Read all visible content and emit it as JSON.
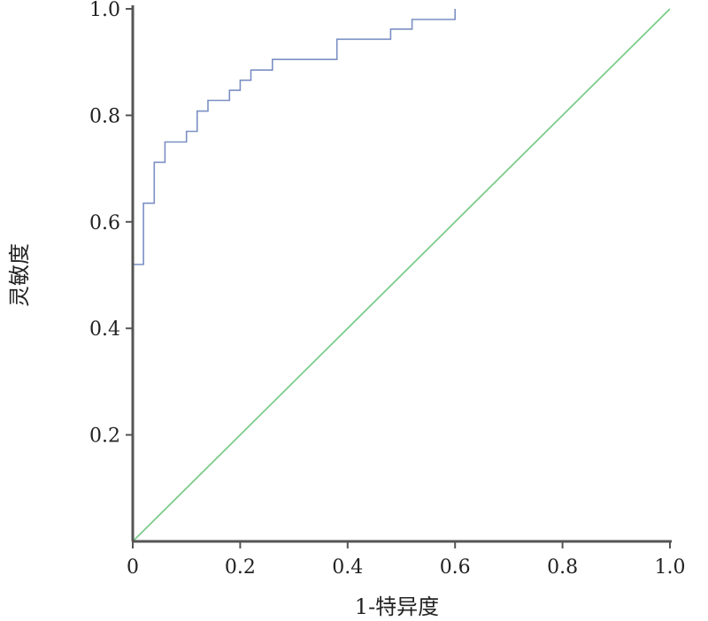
{
  "chart_data": {
    "type": "line",
    "title": "",
    "xlabel": "1-特异度",
    "ylabel": "灵敏度",
    "xlim": [
      0,
      1
    ],
    "ylim": [
      0,
      1
    ],
    "grid": false,
    "x_ticks": [
      {
        "value": 0,
        "label": "0"
      },
      {
        "value": 0.2,
        "label": "0.2"
      },
      {
        "value": 0.4,
        "label": "0.4"
      },
      {
        "value": 0.6,
        "label": "0.6"
      },
      {
        "value": 0.8,
        "label": "0.8"
      },
      {
        "value": 1.0,
        "label": "1.0"
      }
    ],
    "y_ticks": [
      {
        "value": 0.2,
        "label": "0.2"
      },
      {
        "value": 0.4,
        "label": "0.4"
      },
      {
        "value": 0.6,
        "label": "0.6"
      },
      {
        "value": 0.8,
        "label": "0.8"
      },
      {
        "value": 1.0,
        "label": "1.0"
      }
    ],
    "series": [
      {
        "color": "#7b8fc4",
        "step": true,
        "points": [
          [
            0.0,
            0.0
          ],
          [
            0.0,
            0.52
          ],
          [
            0.02,
            0.52
          ],
          [
            0.02,
            0.635
          ],
          [
            0.04,
            0.635
          ],
          [
            0.04,
            0.712
          ],
          [
            0.06,
            0.712
          ],
          [
            0.06,
            0.75
          ],
          [
            0.1,
            0.75
          ],
          [
            0.1,
            0.77
          ],
          [
            0.12,
            0.77
          ],
          [
            0.12,
            0.808
          ],
          [
            0.14,
            0.808
          ],
          [
            0.14,
            0.828
          ],
          [
            0.18,
            0.828
          ],
          [
            0.18,
            0.847
          ],
          [
            0.2,
            0.847
          ],
          [
            0.2,
            0.866
          ],
          [
            0.22,
            0.866
          ],
          [
            0.22,
            0.885
          ],
          [
            0.26,
            0.885
          ],
          [
            0.26,
            0.905
          ],
          [
            0.38,
            0.905
          ],
          [
            0.38,
            0.943
          ],
          [
            0.48,
            0.943
          ],
          [
            0.48,
            0.962
          ],
          [
            0.52,
            0.962
          ],
          [
            0.52,
            0.98
          ],
          [
            0.6,
            0.98
          ],
          [
            0.6,
            1.0
          ]
        ]
      },
      {
        "color": "#7ccc8a",
        "step": false,
        "points": [
          [
            0,
            0
          ],
          [
            1,
            1
          ]
        ]
      }
    ]
  }
}
